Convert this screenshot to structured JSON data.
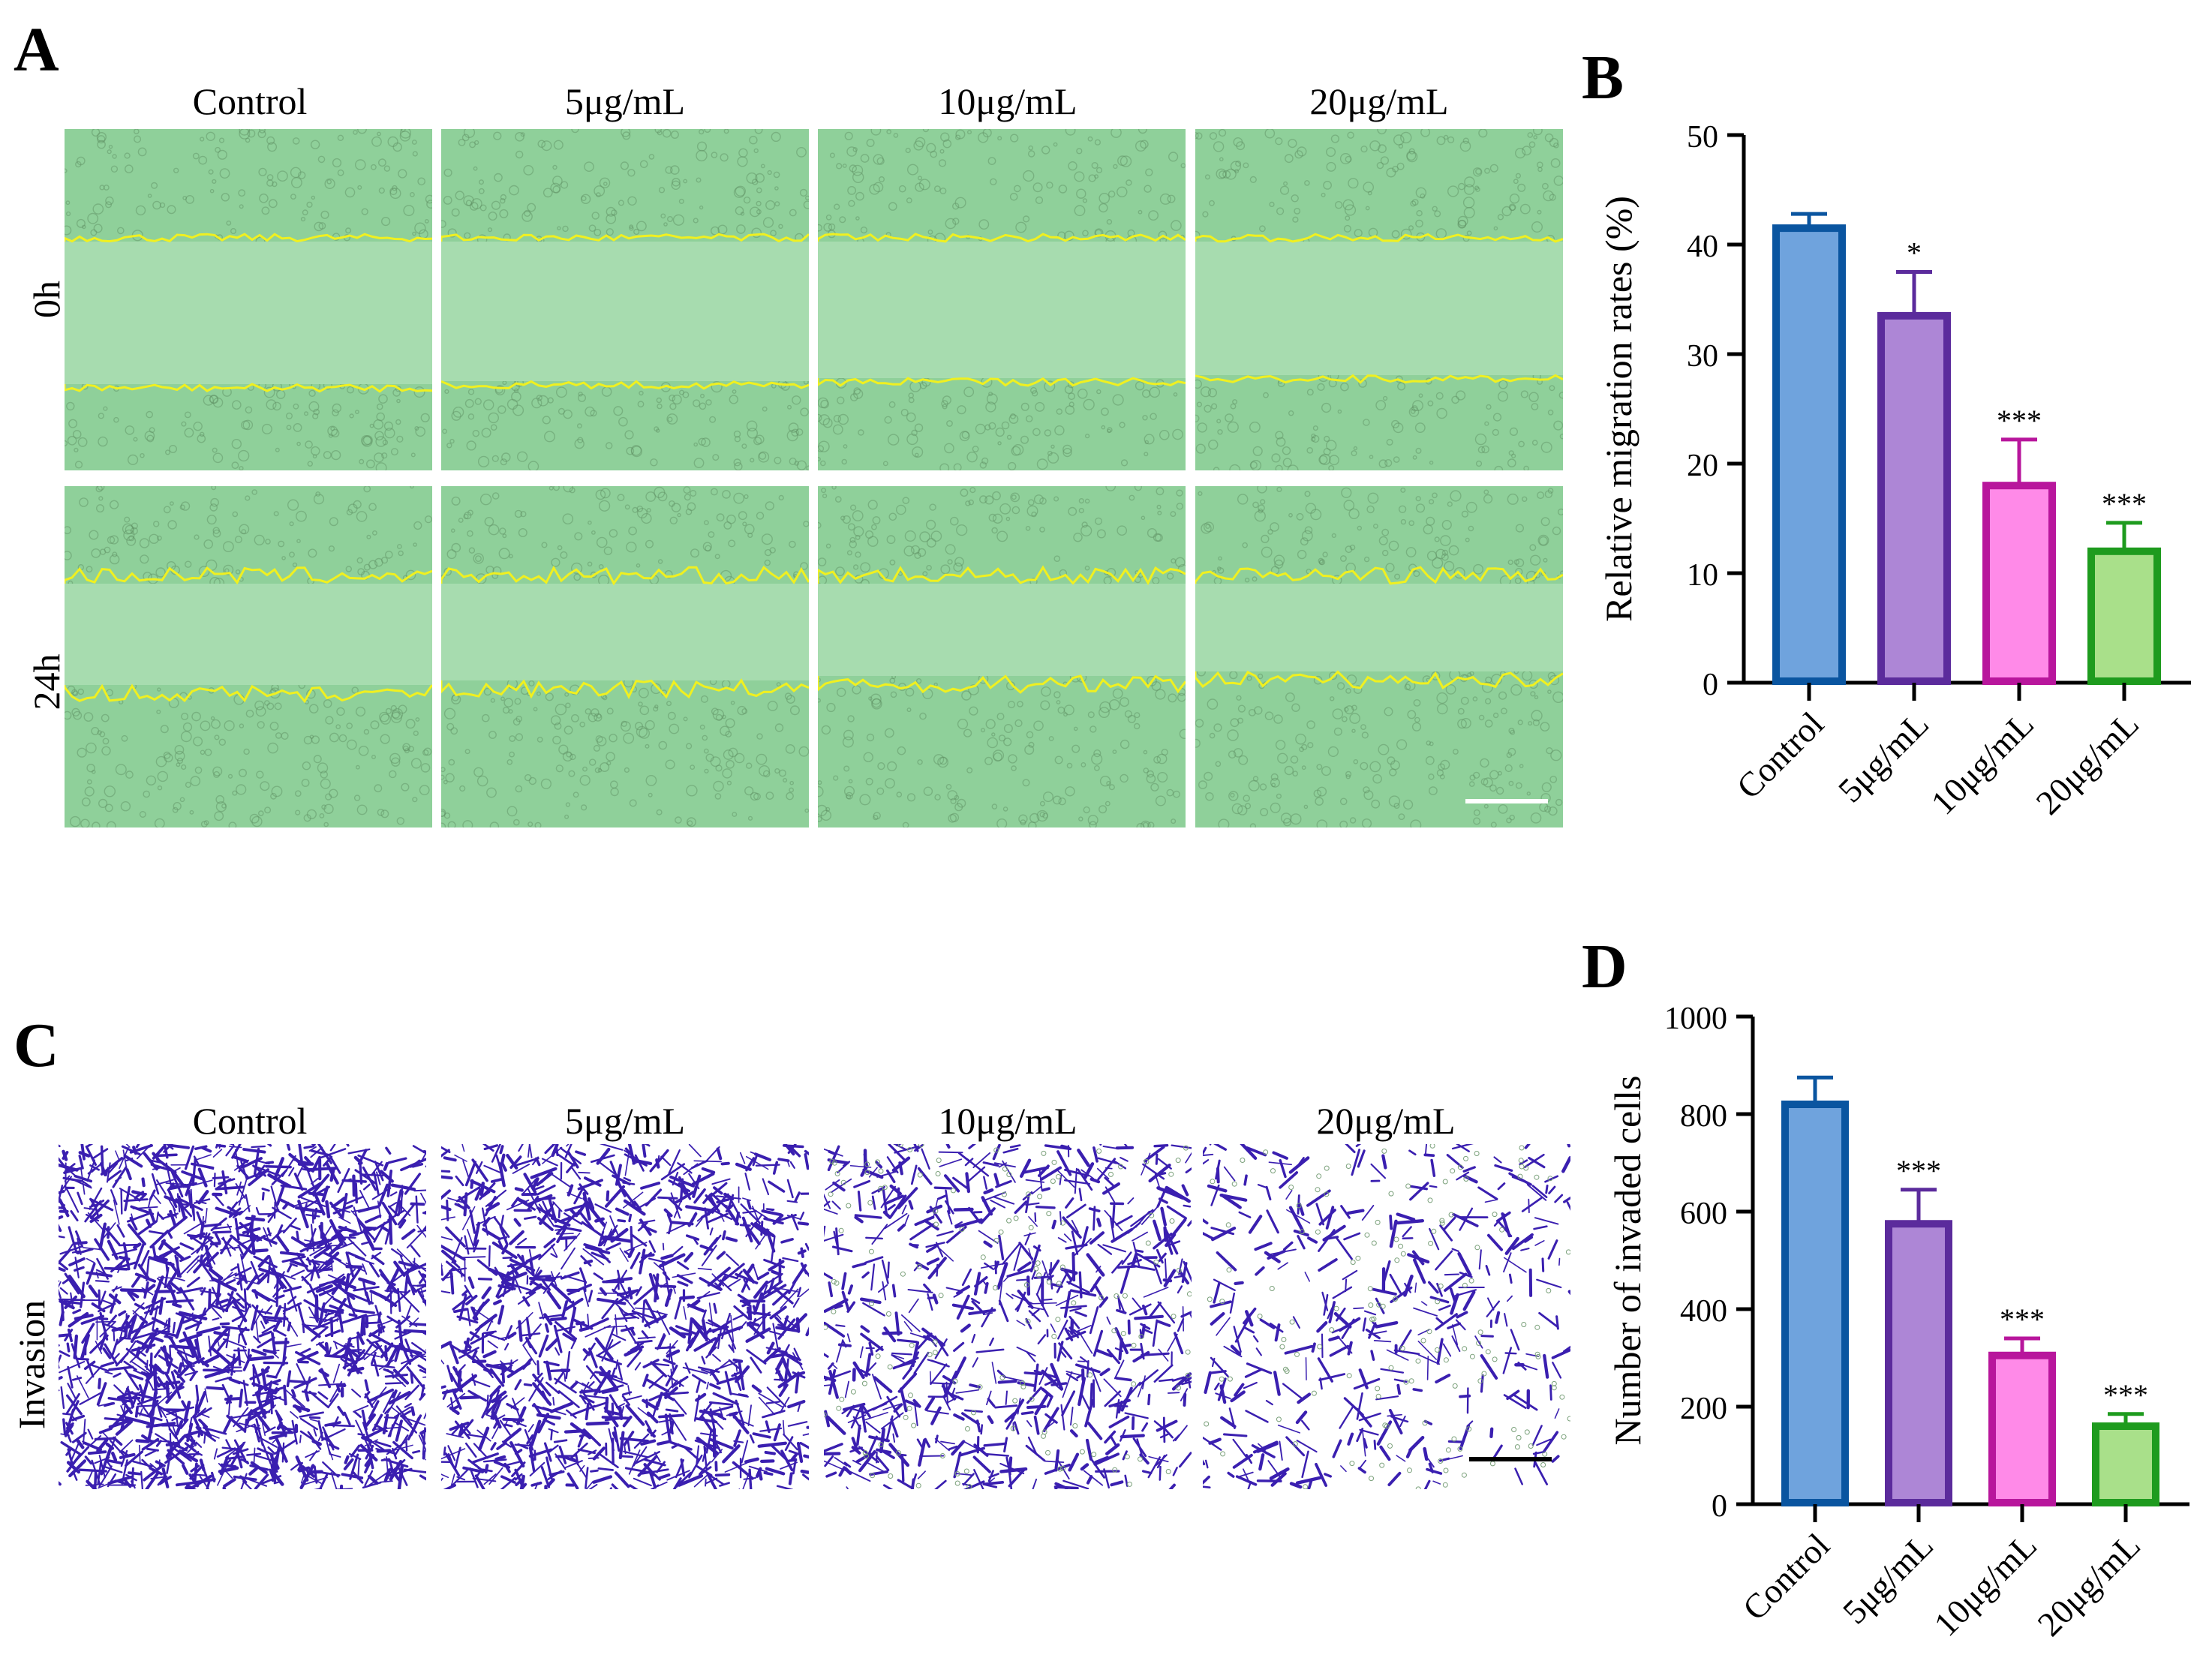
{
  "panels": {
    "A": {
      "label": "A",
      "column_headers": [
        "Control",
        "5μg/mL",
        "10μg/mL",
        "20μg/mL"
      ],
      "row_labels": [
        "0h",
        "24h"
      ],
      "image_colors": {
        "background": "#8fd09a",
        "gap": "#a7dcaf",
        "edge_line": "#f0f020",
        "scale_bar": "#ffffff"
      }
    },
    "C": {
      "label": "C",
      "column_headers": [
        "Control",
        "5μg/mL",
        "10μg/mL",
        "20μg/mL"
      ],
      "row_labels": [
        "Invasion"
      ],
      "image_colors": {
        "background": "#ffffff",
        "cells": "#3a1fb0",
        "scale_bar": "#000000"
      }
    }
  },
  "chart_data": [
    {
      "panel": "B",
      "type": "bar",
      "title": "",
      "xlabel": "",
      "ylabel": "Relative migration rates (%)",
      "categories": [
        "Control",
        "5μg/mL",
        "10μg/mL",
        "20μg/mL"
      ],
      "values": [
        41.5,
        33.5,
        18,
        12
      ],
      "errors": [
        1.3,
        4,
        4.2,
        2.6
      ],
      "significance": [
        "",
        "*",
        "***",
        "***"
      ],
      "ylim": [
        0,
        50
      ],
      "yticks": [
        0,
        10,
        20,
        30,
        40,
        50
      ],
      "colors": {
        "fill": [
          "#6fa3dd",
          "#ad86d6",
          "#ff8ae8",
          "#a9e08a"
        ],
        "edge": [
          "#0a55a0",
          "#5b2b9c",
          "#b8169c",
          "#1e9b1e"
        ]
      }
    },
    {
      "panel": "D",
      "type": "bar",
      "title": "",
      "xlabel": "",
      "ylabel": "Number of invaded cells",
      "categories": [
        "Control",
        "5μg/mL",
        "10μg/mL",
        "20μg/mL"
      ],
      "values": [
        820,
        575,
        305,
        160
      ],
      "errors": [
        55,
        70,
        35,
        25
      ],
      "significance": [
        "",
        "***",
        "***",
        "***"
      ],
      "ylim": [
        0,
        1000
      ],
      "yticks": [
        0,
        200,
        400,
        600,
        800,
        1000
      ],
      "colors": {
        "fill": [
          "#6fa3dd",
          "#ad86d6",
          "#ff8ae8",
          "#a9e08a"
        ],
        "edge": [
          "#0a55a0",
          "#5b2b9c",
          "#b8169c",
          "#1e9b1e"
        ]
      }
    }
  ]
}
